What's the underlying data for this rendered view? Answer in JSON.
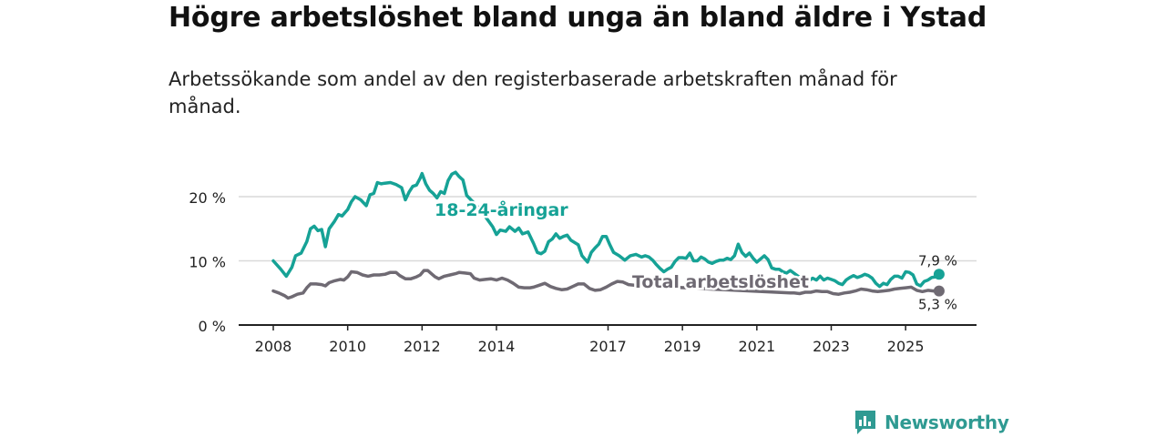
{
  "title": "Högre arbetslöshet bland unga än bland äldre i Ystad",
  "subtitle": "Arbetssökande som andel av den registerbaserade arbetskraften månad för månad.",
  "brand": {
    "name": "Newsworthy",
    "icon": "newsworthy-logo-icon"
  },
  "colors": {
    "youth": "#16a296",
    "total": "#6f6a73",
    "grid": "#d9d9d9",
    "axis": "#222222"
  },
  "chart_data": {
    "type": "line",
    "title": "Högre arbetslöshet bland unga än bland äldre i Ystad",
    "xlabel": "",
    "ylabel": "",
    "xlim": [
      2008,
      2026
    ],
    "ylim": [
      0,
      25
    ],
    "xticks": [
      {
        "value": 2008,
        "label": "2008"
      },
      {
        "value": 2010,
        "label": "2010"
      },
      {
        "value": 2012,
        "label": "2012"
      },
      {
        "value": 2014,
        "label": "2014"
      },
      {
        "value": 2017,
        "label": "2017"
      },
      {
        "value": 2019,
        "label": "2019"
      },
      {
        "value": 2021,
        "label": "2021"
      },
      {
        "value": 2023,
        "label": "2023"
      },
      {
        "value": 2025,
        "label": "2025"
      }
    ],
    "yticks": [
      {
        "value": 0,
        "label": "0 %"
      },
      {
        "value": 10,
        "label": "10 %"
      },
      {
        "value": 20,
        "label": "20 %"
      }
    ],
    "series": [
      {
        "name": "18-24-åringar",
        "color": "#16a296",
        "end_label": "7,9 %",
        "points": [
          [
            2008.0,
            10.0
          ],
          [
            2008.2,
            8.7
          ],
          [
            2008.35,
            7.6
          ],
          [
            2008.5,
            9.0
          ],
          [
            2008.6,
            10.8
          ],
          [
            2008.75,
            11.2
          ],
          [
            2008.9,
            13.0
          ],
          [
            2009.0,
            15.0
          ],
          [
            2009.1,
            15.4
          ],
          [
            2009.2,
            14.7
          ],
          [
            2009.3,
            14.9
          ],
          [
            2009.4,
            12.2
          ],
          [
            2009.5,
            15.0
          ],
          [
            2009.65,
            16.2
          ],
          [
            2009.75,
            17.2
          ],
          [
            2009.85,
            17.0
          ],
          [
            2010.0,
            18.0
          ],
          [
            2010.1,
            19.2
          ],
          [
            2010.2,
            20.0
          ],
          [
            2010.35,
            19.5
          ],
          [
            2010.5,
            18.6
          ],
          [
            2010.6,
            20.3
          ],
          [
            2010.7,
            20.5
          ],
          [
            2010.8,
            22.2
          ],
          [
            2010.9,
            22.0
          ],
          [
            2011.0,
            22.1
          ],
          [
            2011.15,
            22.2
          ],
          [
            2011.3,
            21.9
          ],
          [
            2011.45,
            21.4
          ],
          [
            2011.55,
            19.5
          ],
          [
            2011.65,
            20.7
          ],
          [
            2011.75,
            21.6
          ],
          [
            2011.85,
            21.8
          ],
          [
            2011.95,
            22.9
          ],
          [
            2012.0,
            23.6
          ],
          [
            2012.1,
            22.0
          ],
          [
            2012.2,
            21.0
          ],
          [
            2012.3,
            20.5
          ],
          [
            2012.4,
            19.8
          ],
          [
            2012.5,
            20.8
          ],
          [
            2012.6,
            20.5
          ],
          [
            2012.7,
            22.5
          ],
          [
            2012.8,
            23.5
          ],
          [
            2012.9,
            23.8
          ],
          [
            2013.0,
            23.1
          ],
          [
            2013.1,
            22.6
          ],
          [
            2013.2,
            20.2
          ],
          [
            2013.5,
            18.4
          ],
          [
            2013.75,
            16.5
          ],
          [
            2013.9,
            15.3
          ],
          [
            2014.0,
            14.1
          ],
          [
            2014.1,
            14.8
          ],
          [
            2014.25,
            14.6
          ],
          [
            2014.35,
            15.3
          ],
          [
            2014.5,
            14.6
          ],
          [
            2014.6,
            15.1
          ],
          [
            2014.7,
            14.2
          ],
          [
            2014.85,
            14.5
          ],
          [
            2015.0,
            12.7
          ],
          [
            2015.1,
            11.3
          ],
          [
            2015.2,
            11.1
          ],
          [
            2015.3,
            11.5
          ],
          [
            2015.4,
            13.0
          ],
          [
            2015.5,
            13.4
          ],
          [
            2015.6,
            14.2
          ],
          [
            2015.7,
            13.5
          ],
          [
            2015.8,
            13.8
          ],
          [
            2015.9,
            14.0
          ],
          [
            2016.0,
            13.2
          ],
          [
            2016.2,
            12.5
          ],
          [
            2016.3,
            10.8
          ],
          [
            2016.45,
            9.8
          ],
          [
            2016.55,
            11.3
          ],
          [
            2016.65,
            12.0
          ],
          [
            2016.75,
            12.6
          ],
          [
            2016.85,
            13.8
          ],
          [
            2016.95,
            13.8
          ],
          [
            2017.05,
            12.5
          ],
          [
            2017.15,
            11.3
          ],
          [
            2017.3,
            10.8
          ],
          [
            2017.45,
            10.1
          ],
          [
            2017.6,
            10.8
          ],
          [
            2017.75,
            11.0
          ],
          [
            2017.9,
            10.6
          ],
          [
            2018.0,
            10.8
          ],
          [
            2018.1,
            10.6
          ],
          [
            2018.2,
            10.1
          ],
          [
            2018.3,
            9.4
          ],
          [
            2018.4,
            8.8
          ],
          [
            2018.5,
            8.3
          ],
          [
            2018.6,
            8.7
          ],
          [
            2018.7,
            9.0
          ],
          [
            2018.8,
            9.9
          ],
          [
            2018.9,
            10.5
          ],
          [
            2019.0,
            10.5
          ],
          [
            2019.1,
            10.4
          ],
          [
            2019.2,
            11.2
          ],
          [
            2019.3,
            10.0
          ],
          [
            2019.4,
            10.0
          ],
          [
            2019.5,
            10.6
          ],
          [
            2019.6,
            10.3
          ],
          [
            2019.7,
            9.8
          ],
          [
            2019.8,
            9.6
          ],
          [
            2019.9,
            9.9
          ],
          [
            2020.0,
            10.1
          ],
          [
            2020.1,
            10.1
          ],
          [
            2020.2,
            10.4
          ],
          [
            2020.3,
            10.2
          ],
          [
            2020.4,
            10.8
          ],
          [
            2020.5,
            12.6
          ],
          [
            2020.6,
            11.3
          ],
          [
            2020.7,
            10.7
          ],
          [
            2020.8,
            11.2
          ],
          [
            2020.9,
            10.4
          ],
          [
            2021.0,
            9.8
          ],
          [
            2021.1,
            10.3
          ],
          [
            2021.2,
            10.8
          ],
          [
            2021.3,
            10.2
          ],
          [
            2021.4,
            8.9
          ],
          [
            2021.5,
            8.7
          ],
          [
            2021.6,
            8.7
          ],
          [
            2021.7,
            8.3
          ],
          [
            2021.8,
            8.1
          ],
          [
            2021.9,
            8.5
          ],
          [
            2022.3,
            6.8
          ],
          [
            2022.4,
            6.9
          ],
          [
            2022.5,
            7.3
          ],
          [
            2022.6,
            7.0
          ],
          [
            2022.7,
            7.6
          ],
          [
            2022.8,
            7.0
          ],
          [
            2022.9,
            7.3
          ],
          [
            2023.0,
            7.1
          ],
          [
            2023.1,
            6.9
          ],
          [
            2023.2,
            6.5
          ],
          [
            2023.3,
            6.3
          ],
          [
            2023.4,
            7.0
          ],
          [
            2023.5,
            7.4
          ],
          [
            2023.6,
            7.7
          ],
          [
            2023.7,
            7.4
          ],
          [
            2023.8,
            7.6
          ],
          [
            2023.9,
            7.9
          ],
          [
            2024.0,
            7.7
          ],
          [
            2024.1,
            7.3
          ],
          [
            2024.2,
            6.5
          ],
          [
            2024.3,
            6.0
          ],
          [
            2024.4,
            6.5
          ],
          [
            2024.5,
            6.3
          ],
          [
            2024.6,
            7.1
          ],
          [
            2024.7,
            7.6
          ],
          [
            2024.8,
            7.6
          ],
          [
            2024.9,
            7.3
          ],
          [
            2025.0,
            8.3
          ],
          [
            2025.1,
            8.2
          ],
          [
            2025.2,
            7.8
          ],
          [
            2025.3,
            6.4
          ],
          [
            2025.4,
            6.1
          ],
          [
            2025.5,
            6.8
          ],
          [
            2025.6,
            7.0
          ],
          [
            2025.7,
            7.4
          ],
          [
            2025.8,
            7.5
          ],
          [
            2025.9,
            7.9
          ]
        ]
      },
      {
        "name": "Total arbetslöshet",
        "color": "#6f6a73",
        "end_label": "5,3 %",
        "points": [
          [
            2008.0,
            5.3
          ],
          [
            2008.15,
            5.0
          ],
          [
            2008.3,
            4.6
          ],
          [
            2008.4,
            4.2
          ],
          [
            2008.5,
            4.4
          ],
          [
            2008.65,
            4.8
          ],
          [
            2008.8,
            5.0
          ],
          [
            2008.9,
            5.8
          ],
          [
            2009.0,
            6.4
          ],
          [
            2009.15,
            6.4
          ],
          [
            2009.3,
            6.3
          ],
          [
            2009.4,
            6.1
          ],
          [
            2009.5,
            6.6
          ],
          [
            2009.65,
            6.9
          ],
          [
            2009.8,
            7.1
          ],
          [
            2009.9,
            7.0
          ],
          [
            2010.0,
            7.5
          ],
          [
            2010.1,
            8.3
          ],
          [
            2010.25,
            8.2
          ],
          [
            2010.4,
            7.8
          ],
          [
            2010.55,
            7.6
          ],
          [
            2010.7,
            7.8
          ],
          [
            2010.85,
            7.8
          ],
          [
            2011.0,
            7.9
          ],
          [
            2011.15,
            8.2
          ],
          [
            2011.3,
            8.2
          ],
          [
            2011.4,
            7.7
          ],
          [
            2011.55,
            7.2
          ],
          [
            2011.7,
            7.2
          ],
          [
            2011.85,
            7.5
          ],
          [
            2011.95,
            7.8
          ],
          [
            2012.05,
            8.5
          ],
          [
            2012.15,
            8.5
          ],
          [
            2012.25,
            8.0
          ],
          [
            2012.35,
            7.5
          ],
          [
            2012.45,
            7.2
          ],
          [
            2012.6,
            7.6
          ],
          [
            2012.75,
            7.8
          ],
          [
            2012.9,
            8.0
          ],
          [
            2013.0,
            8.2
          ],
          [
            2013.15,
            8.1
          ],
          [
            2013.3,
            8.0
          ],
          [
            2013.4,
            7.3
          ],
          [
            2013.55,
            7.0
          ],
          [
            2013.7,
            7.1
          ],
          [
            2013.85,
            7.2
          ],
          [
            2014.0,
            7.0
          ],
          [
            2014.15,
            7.3
          ],
          [
            2014.3,
            7.0
          ],
          [
            2014.45,
            6.5
          ],
          [
            2014.6,
            5.9
          ],
          [
            2014.75,
            5.8
          ],
          [
            2014.9,
            5.8
          ],
          [
            2015.0,
            5.9
          ],
          [
            2015.15,
            6.2
          ],
          [
            2015.3,
            6.5
          ],
          [
            2015.45,
            6.0
          ],
          [
            2015.6,
            5.7
          ],
          [
            2015.75,
            5.5
          ],
          [
            2015.9,
            5.6
          ],
          [
            2016.05,
            6.0
          ],
          [
            2016.2,
            6.4
          ],
          [
            2016.35,
            6.4
          ],
          [
            2016.5,
            5.7
          ],
          [
            2016.65,
            5.4
          ],
          [
            2016.8,
            5.5
          ],
          [
            2016.95,
            5.9
          ],
          [
            2017.1,
            6.4
          ],
          [
            2017.25,
            6.8
          ],
          [
            2017.4,
            6.7
          ],
          [
            2017.55,
            6.3
          ],
          [
            2017.7,
            6.2
          ],
          [
            2021.9,
            5.0
          ],
          [
            2022.0,
            5.0
          ],
          [
            2022.15,
            4.9
          ],
          [
            2022.3,
            5.1
          ],
          [
            2022.45,
            5.1
          ],
          [
            2022.6,
            5.3
          ],
          [
            2022.75,
            5.2
          ],
          [
            2022.9,
            5.2
          ],
          [
            2023.05,
            4.9
          ],
          [
            2023.2,
            4.8
          ],
          [
            2023.35,
            5.0
          ],
          [
            2023.5,
            5.1
          ],
          [
            2023.65,
            5.3
          ],
          [
            2023.8,
            5.6
          ],
          [
            2023.95,
            5.5
          ],
          [
            2024.1,
            5.3
          ],
          [
            2024.25,
            5.2
          ],
          [
            2024.4,
            5.3
          ],
          [
            2024.55,
            5.4
          ],
          [
            2024.7,
            5.6
          ],
          [
            2024.85,
            5.7
          ],
          [
            2025.0,
            5.8
          ],
          [
            2025.15,
            5.9
          ],
          [
            2025.3,
            5.4
          ],
          [
            2025.45,
            5.2
          ],
          [
            2025.6,
            5.4
          ],
          [
            2025.75,
            5.3
          ],
          [
            2025.9,
            5.3
          ]
        ]
      }
    ],
    "annotations": [
      {
        "text": "18-24-åringar",
        "series": 0,
        "position": "above-line-left"
      },
      {
        "text": "Total arbetslöshet",
        "series": 1,
        "position": "on-line-center"
      }
    ]
  }
}
